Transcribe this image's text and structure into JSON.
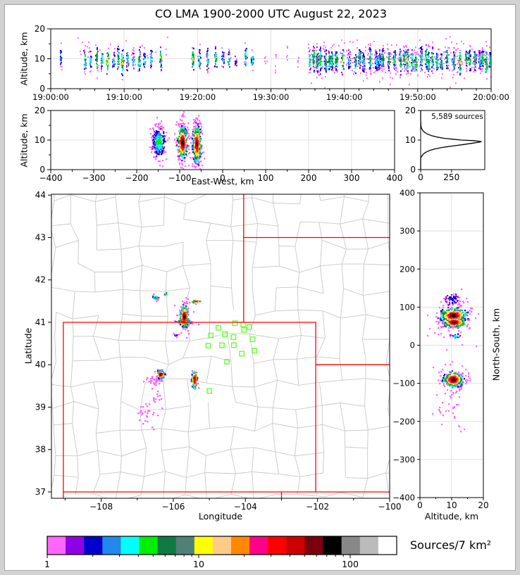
{
  "title": "CO LMA 1900-2000 UTC August 22, 2023",
  "annotation_sources": "5,589 sources",
  "colorbar": {
    "label": "Sources/7 km²",
    "tick_labels": [
      "1",
      "10",
      "100"
    ],
    "tick_values": [
      1,
      10,
      100
    ],
    "minor_ticks": [
      2,
      3,
      4,
      5,
      6,
      7,
      8,
      9,
      20,
      30,
      40,
      50,
      60,
      70,
      80,
      90
    ],
    "range": [
      1,
      200
    ],
    "scale": "log",
    "colors": [
      "#ff66ff",
      "#9000e6",
      "#0000cc",
      "#2288ee",
      "#00ffff",
      "#00ee00",
      "#117a42",
      "#508078",
      "#ffff00",
      "#ffcc88",
      "#ff8800",
      "#ff0088",
      "#ff0000",
      "#cc0000",
      "#7a000e",
      "#000000",
      "#888888",
      "#bbbbbb",
      "#ffffff"
    ]
  },
  "map_colors": {
    "state_border": "#ff0000",
    "county_line": "#c8c8c8",
    "station_marker": "#66ff33",
    "gridline": "#e0e0e0"
  },
  "chart_data": [
    {
      "id": "time_height",
      "type": "scatter",
      "title": "CO LMA 1900-2000 UTC August 22, 2023",
      "ylabel": "Altitude, km",
      "ylim": [
        0,
        20
      ],
      "yticks": [
        0,
        10,
        20
      ],
      "ytick_labels": [
        "0",
        "10",
        "20"
      ],
      "yminor": [
        5,
        15
      ],
      "xlim_seconds": [
        0,
        3600
      ],
      "xtick_seconds": [
        0,
        600,
        1200,
        1800,
        2400,
        3000,
        3600
      ],
      "xtick_labels": [
        "19:00:00",
        "19:10:00",
        "19:20:00",
        "19:30:00",
        "19:40:00",
        "19:50:00",
        "20:00:00"
      ],
      "xminor_step_seconds": 120,
      "grid": true,
      "bursts": [
        [
          1.3,
          24,
          3,
          1.6
        ],
        [
          4.6,
          30,
          6,
          1.9
        ],
        [
          5.3,
          26,
          4,
          1.8
        ],
        [
          6.2,
          34,
          8,
          2.0
        ],
        [
          6.9,
          30,
          5,
          1.8
        ],
        [
          7.7,
          36,
          9,
          2.1
        ],
        [
          8.5,
          28,
          4,
          1.7
        ],
        [
          9.1,
          30,
          6,
          1.9
        ],
        [
          9.7,
          34,
          8,
          2.0
        ],
        [
          10.4,
          30,
          5,
          1.8
        ],
        [
          11.2,
          26,
          4,
          1.7
        ],
        [
          12.0,
          34,
          7,
          2.0
        ],
        [
          12.7,
          22,
          4,
          1.6
        ],
        [
          13.6,
          26,
          5,
          1.8
        ],
        [
          14.9,
          30,
          6,
          1.9
        ],
        [
          19.3,
          42,
          8,
          2.1
        ],
        [
          20.2,
          30,
          5,
          1.8
        ],
        [
          21.3,
          28,
          5,
          1.8
        ],
        [
          22.4,
          32,
          6,
          1.9
        ],
        [
          23.4,
          26,
          4,
          1.7
        ],
        [
          24.2,
          22,
          4,
          1.6
        ],
        [
          25.1,
          12,
          2,
          1.4
        ],
        [
          26.5,
          30,
          6,
          1.8
        ],
        [
          27.4,
          24,
          4,
          1.6
        ],
        [
          29.2,
          5,
          0,
          1.8
        ],
        [
          30.6,
          6,
          0,
          2.2
        ],
        [
          32.1,
          5,
          0,
          1.9
        ],
        [
          33.6,
          4,
          0,
          1.6
        ]
      ],
      "dense_period": {
        "start_min": 35.2,
        "end_min": 59.85,
        "step_min": 0.62,
        "step_jitter": 0.3,
        "n_min": 26,
        "n_max": 58,
        "alt_center": 9.6,
        "alt_center_jitter": 0.45,
        "alt_sd_min": 1.4,
        "alt_sd_max": 2.2,
        "max_colors": [
          4,
          5,
          5,
          6,
          6,
          7,
          8
        ]
      },
      "background_scatter": {
        "t_min_minutes": 35.0,
        "t_max_minutes": 60.0,
        "n": 360,
        "alt_mean": 9.8,
        "alt_sd": 3.4
      },
      "early_outliers": {
        "t_min_minutes": 3.5,
        "t_max_minutes": 16.0,
        "n": 26,
        "alt_mean": 13.2,
        "alt_sd": 1.8
      }
    },
    {
      "id": "ew_height",
      "type": "scatter",
      "xlabel": "East-West, km",
      "ylabel": "Altitude, km",
      "xlim": [
        -400,
        400
      ],
      "xticks": [
        -400,
        -300,
        -200,
        -100,
        0,
        100,
        200,
        300,
        400
      ],
      "xtick_labels": [
        "−400",
        "−300",
        "−200",
        "−100",
        "0",
        "100",
        "200",
        "300",
        "400"
      ],
      "xminor_step": 50,
      "ylim": [
        0,
        20
      ],
      "yticks": [
        0,
        10,
        20
      ],
      "ytick_labels": [
        "0",
        "10",
        "20"
      ],
      "yminor": [
        5,
        15
      ],
      "grid": true,
      "clusters": [
        {
          "x": -150,
          "alt": 9.6,
          "sx": 7,
          "salt": 2.4,
          "n": 230,
          "max_color": 5
        },
        {
          "x": -150,
          "alt": 10,
          "sx": 9,
          "salt": 4.2,
          "n": 75,
          "max_color": 0
        },
        {
          "x": -95,
          "alt": 9.4,
          "sx": 5,
          "salt": 2.5,
          "n": 400,
          "max_color": 15
        },
        {
          "x": -95,
          "alt": 10,
          "sx": 7,
          "salt": 4.6,
          "n": 110,
          "max_color": 0
        },
        {
          "x": -62,
          "alt": 8.8,
          "sx": 4.5,
          "salt": 3.0,
          "n": 360,
          "max_color": 14
        },
        {
          "x": -62,
          "alt": 9,
          "sx": 6,
          "salt": 4.8,
          "n": 100,
          "max_color": 0
        }
      ]
    },
    {
      "id": "altitude_histogram",
      "type": "line",
      "annotation": "5,589 sources",
      "xlim": [
        0,
        520
      ],
      "xticks": [
        0,
        250
      ],
      "xtick_labels": [
        "0",
        "250"
      ],
      "yticks": [
        0,
        10,
        20
      ],
      "ytick_labels": [
        "0",
        "10",
        "20"
      ],
      "profile_alt_count": [
        [
          0,
          0
        ],
        [
          3.8,
          0
        ],
        [
          4.2,
          4
        ],
        [
          4.6,
          10
        ],
        [
          5,
          16
        ],
        [
          5.5,
          28
        ],
        [
          6,
          48
        ],
        [
          6.5,
          75
        ],
        [
          7,
          115
        ],
        [
          7.5,
          175
        ],
        [
          8,
          260
        ],
        [
          8.5,
          350
        ],
        [
          9,
          430
        ],
        [
          9.3,
          480
        ],
        [
          9.5,
          492
        ],
        [
          9.8,
          430
        ],
        [
          10,
          330
        ],
        [
          10.3,
          255
        ],
        [
          10.6,
          190
        ],
        [
          11,
          135
        ],
        [
          11.5,
          88
        ],
        [
          12,
          56
        ],
        [
          12.5,
          36
        ],
        [
          13,
          22
        ],
        [
          13.5,
          13
        ],
        [
          14,
          7
        ],
        [
          14.5,
          4
        ],
        [
          15,
          2
        ],
        [
          16,
          1
        ],
        [
          17,
          0
        ],
        [
          20,
          0
        ]
      ]
    },
    {
      "id": "map",
      "type": "scatter",
      "xlabel": "Longitude",
      "ylabel": "Latitude",
      "xlim": [
        -109.38,
        -100
      ],
      "ylim": [
        36.85,
        44.02
      ],
      "xticks": [
        -108,
        -106,
        -104,
        -102,
        -100
      ],
      "xtick_labels": [
        "−108",
        "−106",
        "−104",
        "−102",
        "−100"
      ],
      "xminor": [
        -109,
        -107,
        -105,
        -103,
        -101
      ],
      "yticks": [
        37,
        38,
        39,
        40,
        41,
        42,
        43,
        44
      ],
      "ytick_labels": [
        "37",
        "38",
        "39",
        "40",
        "41",
        "42",
        "43",
        "44"
      ],
      "state_borders": [
        [
          [
            -109.05,
            36.85
          ],
          [
            -109.05,
            41.0
          ],
          [
            -102.05,
            41.0
          ],
          [
            -102.05,
            37.0
          ]
        ],
        [
          [
            -109.05,
            37.0
          ],
          [
            -100.0,
            37.0
          ]
        ],
        [
          [
            -104.05,
            41.0
          ],
          [
            -104.05,
            44.02
          ]
        ],
        [
          [
            -104.05,
            43.0
          ],
          [
            -100.0,
            43.0
          ]
        ],
        [
          [
            -102.05,
            40.0
          ],
          [
            -100.0,
            40.0
          ]
        ],
        [
          [
            -103.0,
            37.0
          ],
          [
            -103.0,
            36.85
          ]
        ]
      ],
      "stations": [
        [
          -104.29,
          40.98
        ],
        [
          -104.75,
          40.87
        ],
        [
          -104.06,
          40.95
        ],
        [
          -104.04,
          40.82
        ],
        [
          -103.89,
          40.89
        ],
        [
          -104.96,
          40.69
        ],
        [
          -104.57,
          40.72
        ],
        [
          -104.33,
          40.65
        ],
        [
          -103.8,
          40.6
        ],
        [
          -105.03,
          40.45
        ],
        [
          -104.65,
          40.46
        ],
        [
          -104.32,
          40.46
        ],
        [
          -103.75,
          40.33
        ],
        [
          -104.1,
          40.26
        ],
        [
          -104.51,
          40.07
        ],
        [
          -105.0,
          39.38
        ]
      ],
      "clusters": [
        {
          "lon": -105.72,
          "lat": 41.15,
          "slon": 0.05,
          "slat": 0.12,
          "n": 230,
          "max_color": 15
        },
        {
          "lon": -105.74,
          "lat": 41.02,
          "slon": 0.09,
          "slat": 0.03,
          "n": 60,
          "max_color": 13
        },
        {
          "lon": -105.7,
          "lat": 41.15,
          "slon": 0.12,
          "slat": 0.2,
          "n": 55,
          "max_color": 0
        },
        {
          "lon": -106.52,
          "lat": 41.6,
          "slon": 0.04,
          "slat": 0.03,
          "n": 24,
          "max_color": 6
        },
        {
          "lon": -106.22,
          "lat": 41.69,
          "slon": 0.02,
          "slat": 0.015,
          "n": 8,
          "max_color": 5
        },
        {
          "lon": -105.38,
          "lat": 41.51,
          "slon": 0.07,
          "slat": 0.015,
          "n": 20,
          "max_color": 12
        },
        {
          "lon": -105.93,
          "lat": 40.72,
          "slon": 0.03,
          "slat": 0.02,
          "n": 7,
          "max_color": 2
        },
        {
          "lon": -106.37,
          "lat": 39.79,
          "slon": 0.05,
          "slat": 0.045,
          "n": 95,
          "max_color": 14
        },
        {
          "lon": -106.55,
          "lat": 39.63,
          "slon": 0.1,
          "slat": 0.06,
          "n": 35,
          "max_color": 0
        },
        {
          "lon": -105.43,
          "lat": 39.66,
          "slon": 0.035,
          "slat": 0.1,
          "n": 130,
          "max_color": 14
        },
        {
          "lon": -106.7,
          "lat": 38.9,
          "slon": 0.18,
          "slat": 0.16,
          "n": 30,
          "max_color": 0
        },
        {
          "lon": -106.45,
          "lat": 39.25,
          "slon": 0.05,
          "slat": 0.05,
          "n": 8,
          "max_color": 0
        }
      ]
    },
    {
      "id": "ns_height",
      "type": "scatter",
      "xlabel": "Altitude, km",
      "ylabel": "North-South, km",
      "xlim": [
        0,
        20
      ],
      "xticks": [
        0,
        10,
        20
      ],
      "xtick_labels": [
        "0",
        "10",
        "20"
      ],
      "xminor": [
        5,
        15
      ],
      "ylim": [
        -400,
        400
      ],
      "yticks": [
        -400,
        -300,
        -200,
        -100,
        0,
        100,
        200,
        300,
        400
      ],
      "ytick_labels": [
        "−400",
        "−300",
        "−200",
        "−100",
        "0",
        "100",
        "200",
        "300",
        "400"
      ],
      "grid": true,
      "clusters": [
        {
          "ns": 80,
          "alt": 10.3,
          "sns": 9,
          "salt": 2.0,
          "n": 380,
          "max_color": 15
        },
        {
          "ns": 62,
          "alt": 10.6,
          "sns": 6,
          "salt": 1.7,
          "n": 260,
          "max_color": 15
        },
        {
          "ns": 75,
          "alt": 10,
          "sns": 26,
          "salt": 3.4,
          "n": 120,
          "max_color": 0
        },
        {
          "ns": 122,
          "alt": 10,
          "sns": 8,
          "salt": 1.3,
          "n": 60,
          "max_color": 2
        },
        {
          "ns": 25,
          "alt": 11,
          "sns": 3,
          "salt": 0.8,
          "n": 22,
          "max_color": 4
        },
        {
          "ns": -88,
          "alt": 10.3,
          "sns": 9,
          "salt": 1.5,
          "n": 360,
          "max_color": 15
        },
        {
          "ns": -88,
          "alt": 10,
          "sns": 22,
          "salt": 2.8,
          "n": 85,
          "max_color": 0
        },
        {
          "ns": -165,
          "alt": 9,
          "sns": 22,
          "salt": 2.4,
          "n": 24,
          "max_color": 0
        },
        {
          "ns": -210,
          "alt": 13,
          "sns": 8,
          "salt": 1.2,
          "n": 4,
          "max_color": 0
        }
      ]
    }
  ],
  "panels": {
    "time_height": {
      "ylabel": "Altitude, km"
    },
    "ew_height": {
      "xlabel": "East-West, km",
      "ylabel": "Altitude, km"
    },
    "map": {
      "xlabel": "Longitude",
      "ylabel": "Latitude"
    },
    "ns_height": {
      "xlabel": "Altitude, km",
      "ylabel": "North-South, km"
    }
  }
}
